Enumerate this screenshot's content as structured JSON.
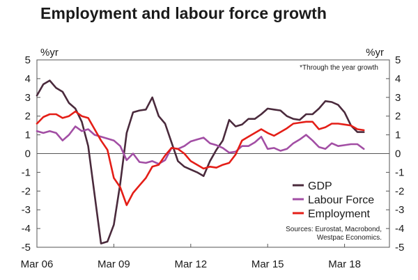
{
  "chart_data": {
    "type": "line",
    "title": "Employment and labour force growth",
    "y_unit_left": "%yr",
    "y_unit_right": "%yr",
    "ylim": [
      -5,
      5
    ],
    "y_ticks": [
      5,
      4,
      3,
      2,
      1,
      0,
      -1,
      -2,
      -3,
      -4,
      -5
    ],
    "x_range": [
      2006,
      2019.75
    ],
    "x_ticks": [
      {
        "label": "Mar 06",
        "x": 2006.0
      },
      {
        "label": "Mar 09",
        "x": 2009.0
      },
      {
        "label": "Mar 12",
        "x": 2012.0
      },
      {
        "label": "Mar 15",
        "x": 2015.0
      },
      {
        "label": "Mar 18",
        "x": 2018.0
      }
    ],
    "annotation": "*Through the year growth",
    "source": [
      "Sources: Eurostat, Macrobond,",
      "Westpac Economics."
    ],
    "legend_position": "bottom-right",
    "grid": false,
    "series": [
      {
        "name": "GDP",
        "color": "#4a2a3c",
        "points": [
          [
            2006.0,
            3.1
          ],
          [
            2006.25,
            3.7
          ],
          [
            2006.5,
            3.9
          ],
          [
            2006.75,
            3.5
          ],
          [
            2007.0,
            3.3
          ],
          [
            2007.25,
            2.7
          ],
          [
            2007.5,
            2.4
          ],
          [
            2007.75,
            1.7
          ],
          [
            2008.0,
            0.4
          ],
          [
            2008.25,
            -2.2
          ],
          [
            2008.5,
            -4.8
          ],
          [
            2008.75,
            -4.7
          ],
          [
            2009.0,
            -3.8
          ],
          [
            2009.25,
            -1.6
          ],
          [
            2009.5,
            1.1
          ],
          [
            2009.75,
            2.2
          ],
          [
            2010.0,
            2.3
          ],
          [
            2010.25,
            2.35
          ],
          [
            2010.5,
            3.0
          ],
          [
            2010.75,
            2.0
          ],
          [
            2011.0,
            1.6
          ],
          [
            2011.25,
            0.6
          ],
          [
            2011.5,
            -0.4
          ],
          [
            2011.75,
            -0.7
          ],
          [
            2012.0,
            -0.85
          ],
          [
            2012.25,
            -1.0
          ],
          [
            2012.5,
            -1.2
          ],
          [
            2012.75,
            -0.4
          ],
          [
            2013.0,
            0.2
          ],
          [
            2013.25,
            0.7
          ],
          [
            2013.5,
            1.8
          ],
          [
            2013.75,
            1.45
          ],
          [
            2014.0,
            1.55
          ],
          [
            2014.25,
            1.85
          ],
          [
            2014.5,
            1.85
          ],
          [
            2014.75,
            2.1
          ],
          [
            2015.0,
            2.4
          ],
          [
            2015.25,
            2.35
          ],
          [
            2015.5,
            2.3
          ],
          [
            2015.75,
            2.0
          ],
          [
            2016.0,
            1.85
          ],
          [
            2016.25,
            1.8
          ],
          [
            2016.5,
            2.1
          ],
          [
            2016.75,
            2.1
          ],
          [
            2017.0,
            2.4
          ],
          [
            2017.25,
            2.8
          ],
          [
            2017.5,
            2.75
          ],
          [
            2017.75,
            2.6
          ],
          [
            2018.0,
            2.2
          ],
          [
            2018.25,
            1.5
          ],
          [
            2018.5,
            1.15
          ],
          [
            2018.75,
            1.15
          ]
        ]
      },
      {
        "name": "Labour Force",
        "color": "#a24ea4",
        "points": [
          [
            2006.0,
            1.2
          ],
          [
            2006.25,
            1.1
          ],
          [
            2006.5,
            1.2
          ],
          [
            2006.75,
            1.1
          ],
          [
            2007.0,
            0.7
          ],
          [
            2007.25,
            1.0
          ],
          [
            2007.5,
            1.45
          ],
          [
            2007.75,
            1.2
          ],
          [
            2008.0,
            1.3
          ],
          [
            2008.25,
            1.0
          ],
          [
            2008.5,
            0.9
          ],
          [
            2008.75,
            0.8
          ],
          [
            2009.0,
            0.7
          ],
          [
            2009.25,
            0.4
          ],
          [
            2009.5,
            -0.35
          ],
          [
            2009.75,
            0.0
          ],
          [
            2010.0,
            -0.45
          ],
          [
            2010.25,
            -0.5
          ],
          [
            2010.5,
            -0.4
          ],
          [
            2010.75,
            -0.55
          ],
          [
            2011.0,
            -0.35
          ],
          [
            2011.25,
            0.3
          ],
          [
            2011.5,
            0.25
          ],
          [
            2011.75,
            0.4
          ],
          [
            2012.0,
            0.65
          ],
          [
            2012.25,
            0.75
          ],
          [
            2012.5,
            0.85
          ],
          [
            2012.75,
            0.55
          ],
          [
            2013.0,
            0.45
          ],
          [
            2013.25,
            0.3
          ],
          [
            2013.5,
            0.05
          ],
          [
            2013.75,
            0.1
          ],
          [
            2014.0,
            0.4
          ],
          [
            2014.25,
            0.4
          ],
          [
            2014.5,
            0.6
          ],
          [
            2014.75,
            0.9
          ],
          [
            2015.0,
            0.25
          ],
          [
            2015.25,
            0.3
          ],
          [
            2015.5,
            0.15
          ],
          [
            2015.75,
            0.25
          ],
          [
            2016.0,
            0.55
          ],
          [
            2016.25,
            0.75
          ],
          [
            2016.5,
            1.0
          ],
          [
            2016.75,
            0.7
          ],
          [
            2017.0,
            0.35
          ],
          [
            2017.25,
            0.25
          ],
          [
            2017.5,
            0.55
          ],
          [
            2017.75,
            0.4
          ],
          [
            2018.0,
            0.45
          ],
          [
            2018.25,
            0.5
          ],
          [
            2018.5,
            0.5
          ],
          [
            2018.75,
            0.25
          ]
        ]
      },
      {
        "name": "Employment",
        "color": "#e41e17",
        "points": [
          [
            2006.0,
            1.6
          ],
          [
            2006.25,
            1.95
          ],
          [
            2006.5,
            2.1
          ],
          [
            2006.75,
            2.1
          ],
          [
            2007.0,
            1.9
          ],
          [
            2007.25,
            2.0
          ],
          [
            2007.5,
            2.25
          ],
          [
            2007.75,
            2.0
          ],
          [
            2008.0,
            1.9
          ],
          [
            2008.25,
            1.3
          ],
          [
            2008.5,
            0.7
          ],
          [
            2008.75,
            0.2
          ],
          [
            2009.0,
            -1.3
          ],
          [
            2009.25,
            -1.8
          ],
          [
            2009.5,
            -2.75
          ],
          [
            2009.75,
            -2.1
          ],
          [
            2010.0,
            -1.7
          ],
          [
            2010.25,
            -1.3
          ],
          [
            2010.5,
            -0.7
          ],
          [
            2010.75,
            -0.6
          ],
          [
            2011.0,
            -0.1
          ],
          [
            2011.25,
            0.3
          ],
          [
            2011.5,
            0.25
          ],
          [
            2011.75,
            0.0
          ],
          [
            2012.0,
            -0.4
          ],
          [
            2012.25,
            -0.6
          ],
          [
            2012.5,
            -0.8
          ],
          [
            2012.75,
            -0.7
          ],
          [
            2013.0,
            -0.75
          ],
          [
            2013.25,
            -0.6
          ],
          [
            2013.5,
            -0.5
          ],
          [
            2013.75,
            -0.05
          ],
          [
            2014.0,
            0.7
          ],
          [
            2014.25,
            0.9
          ],
          [
            2014.5,
            1.1
          ],
          [
            2014.75,
            1.3
          ],
          [
            2015.0,
            1.1
          ],
          [
            2015.25,
            0.95
          ],
          [
            2015.5,
            1.15
          ],
          [
            2015.75,
            1.35
          ],
          [
            2016.0,
            1.6
          ],
          [
            2016.25,
            1.65
          ],
          [
            2016.5,
            1.7
          ],
          [
            2016.75,
            1.7
          ],
          [
            2017.0,
            1.3
          ],
          [
            2017.25,
            1.4
          ],
          [
            2017.5,
            1.6
          ],
          [
            2017.75,
            1.6
          ],
          [
            2018.0,
            1.55
          ],
          [
            2018.25,
            1.5
          ],
          [
            2018.5,
            1.3
          ],
          [
            2018.75,
            1.25
          ]
        ]
      }
    ]
  }
}
